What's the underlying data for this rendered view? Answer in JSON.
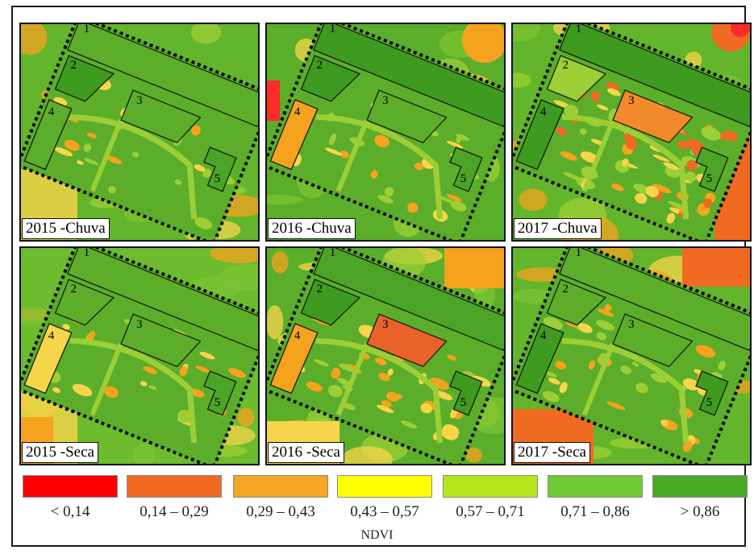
{
  "panels": [
    {
      "label": "2015 -Chuva",
      "zones": {
        "z1": "#5cae2a",
        "z2": "#3f9a20",
        "z3": "#5cae2a",
        "z4": "#5cae2a",
        "z5": "#4ba425"
      },
      "bg": "#63b52c",
      "spots": "sparse"
    },
    {
      "label": "2016 -Chuva",
      "zones": {
        "z1": "#3f9a20",
        "z2": "#3f9a20",
        "z3": "#5cae2a",
        "z4": "#f5a21f",
        "z5": "#4ba425"
      },
      "bg": "#5aae2a",
      "spots": "sparse"
    },
    {
      "label": "2017 -Chuva",
      "zones": {
        "z1": "#3f9a20",
        "z2": "#9ccf36",
        "z3": "#f08a2a",
        "z4": "#3f9a20",
        "z5": "#4ba425"
      },
      "bg": "#63b52c",
      "spots": "dense"
    },
    {
      "label": "2015 -Seca",
      "zones": {
        "z1": "#5cae2a",
        "z2": "#5cae2a",
        "z3": "#5cae2a",
        "z4": "#f7d54a",
        "z5": "#4ba425"
      },
      "bg": "#6cbc2e",
      "spots": "sparse"
    },
    {
      "label": "2016 -Seca",
      "zones": {
        "z1": "#4ba425",
        "z2": "#3f9a20",
        "z3": "#e8622a",
        "z4": "#f5a21f",
        "z5": "#3f9a20"
      },
      "bg": "#5aae2a",
      "spots": "medium"
    },
    {
      "label": "2017 -Seca",
      "zones": {
        "z1": "#5cae2a",
        "z2": "#5cae2a",
        "z3": "#5cae2a",
        "z4": "#3f9a20",
        "z5": "#3f9a20"
      },
      "bg": "#63b52c",
      "spots": "medium"
    }
  ],
  "zone_numbers": [
    "1",
    "2",
    "3",
    "4",
    "5"
  ],
  "legend": {
    "title": "NDVI",
    "classes": [
      {
        "label": "< 0,14",
        "color": "#ff0000"
      },
      {
        "label": "0,14 – 0,29",
        "color": "#f06a22"
      },
      {
        "label": "0,29 – 0,43",
        "color": "#f5a623"
      },
      {
        "label": "0,43 – 0,57",
        "color": "#ffff00"
      },
      {
        "label": "0,57 – 0,71",
        "color": "#b5e61d"
      },
      {
        "label": "0,71 – 0,86",
        "color": "#71c934"
      },
      {
        "label": "> 0,86",
        "color": "#4aaa27"
      }
    ]
  }
}
